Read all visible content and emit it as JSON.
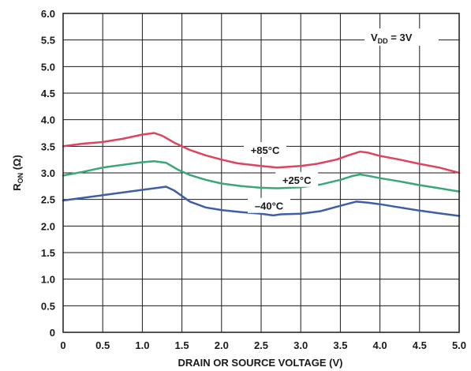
{
  "chart_data": {
    "type": "line",
    "title": "",
    "xlabel": "DRAIN OR SOURCE VOLTAGE (V)",
    "ylabel": {
      "main": "R",
      "sub": "ON",
      "rest": " (Ω)"
    },
    "xlim": [
      0,
      5.0
    ],
    "ylim": [
      0,
      6.0
    ],
    "x_ticks": [
      "0",
      "0.5",
      "1.0",
      "1.5",
      "2.0",
      "2.5",
      "3.0",
      "3.5",
      "4.0",
      "4.5",
      "5.0"
    ],
    "y_ticks": [
      "0",
      "0.5",
      "1.0",
      "1.5",
      "2.0",
      "2.5",
      "3.0",
      "3.5",
      "4.0",
      "4.5",
      "5.0",
      "5.5",
      "6.0"
    ],
    "grid": true,
    "annotation": {
      "main": "V",
      "sub": "DD",
      "rest": " = 3V"
    },
    "series": [
      {
        "name": "+85°C",
        "color": "#e0435e",
        "points": [
          [
            0,
            3.5
          ],
          [
            0.25,
            3.55
          ],
          [
            0.5,
            3.58
          ],
          [
            0.75,
            3.64
          ],
          [
            1.0,
            3.72
          ],
          [
            1.15,
            3.75
          ],
          [
            1.25,
            3.7
          ],
          [
            1.4,
            3.57
          ],
          [
            1.6,
            3.43
          ],
          [
            1.8,
            3.33
          ],
          [
            2.0,
            3.25
          ],
          [
            2.2,
            3.18
          ],
          [
            2.5,
            3.13
          ],
          [
            2.7,
            3.1
          ],
          [
            3.0,
            3.13
          ],
          [
            3.2,
            3.17
          ],
          [
            3.45,
            3.25
          ],
          [
            3.6,
            3.33
          ],
          [
            3.75,
            3.4
          ],
          [
            3.85,
            3.38
          ],
          [
            4.0,
            3.32
          ],
          [
            4.25,
            3.25
          ],
          [
            4.5,
            3.17
          ],
          [
            4.75,
            3.1
          ],
          [
            5.0,
            3.0
          ]
        ]
      },
      {
        "name": "+25°C",
        "color": "#3aa876",
        "points": [
          [
            0,
            2.95
          ],
          [
            0.25,
            3.02
          ],
          [
            0.5,
            3.1
          ],
          [
            0.75,
            3.15
          ],
          [
            1.0,
            3.2
          ],
          [
            1.15,
            3.22
          ],
          [
            1.3,
            3.19
          ],
          [
            1.45,
            3.06
          ],
          [
            1.6,
            2.96
          ],
          [
            1.8,
            2.87
          ],
          [
            2.0,
            2.8
          ],
          [
            2.25,
            2.75
          ],
          [
            2.5,
            2.72
          ],
          [
            2.7,
            2.71
          ],
          [
            3.0,
            2.73
          ],
          [
            3.25,
            2.78
          ],
          [
            3.5,
            2.87
          ],
          [
            3.65,
            2.94
          ],
          [
            3.75,
            2.97
          ],
          [
            3.9,
            2.93
          ],
          [
            4.0,
            2.9
          ],
          [
            4.25,
            2.84
          ],
          [
            4.5,
            2.77
          ],
          [
            4.75,
            2.71
          ],
          [
            5.0,
            2.65
          ]
        ]
      },
      {
        "name": "–40°C",
        "color": "#3d5fa5",
        "points": [
          [
            0,
            2.48
          ],
          [
            0.25,
            2.53
          ],
          [
            0.5,
            2.58
          ],
          [
            0.75,
            2.63
          ],
          [
            1.0,
            2.68
          ],
          [
            1.2,
            2.72
          ],
          [
            1.3,
            2.74
          ],
          [
            1.4,
            2.67
          ],
          [
            1.6,
            2.46
          ],
          [
            1.8,
            2.35
          ],
          [
            2.0,
            2.3
          ],
          [
            2.25,
            2.26
          ],
          [
            2.5,
            2.23
          ],
          [
            2.65,
            2.2
          ],
          [
            2.75,
            2.22
          ],
          [
            3.0,
            2.23
          ],
          [
            3.25,
            2.28
          ],
          [
            3.5,
            2.38
          ],
          [
            3.7,
            2.46
          ],
          [
            3.85,
            2.44
          ],
          [
            4.0,
            2.41
          ],
          [
            4.25,
            2.35
          ],
          [
            4.5,
            2.29
          ],
          [
            4.75,
            2.24
          ],
          [
            5.0,
            2.19
          ]
        ]
      }
    ]
  }
}
